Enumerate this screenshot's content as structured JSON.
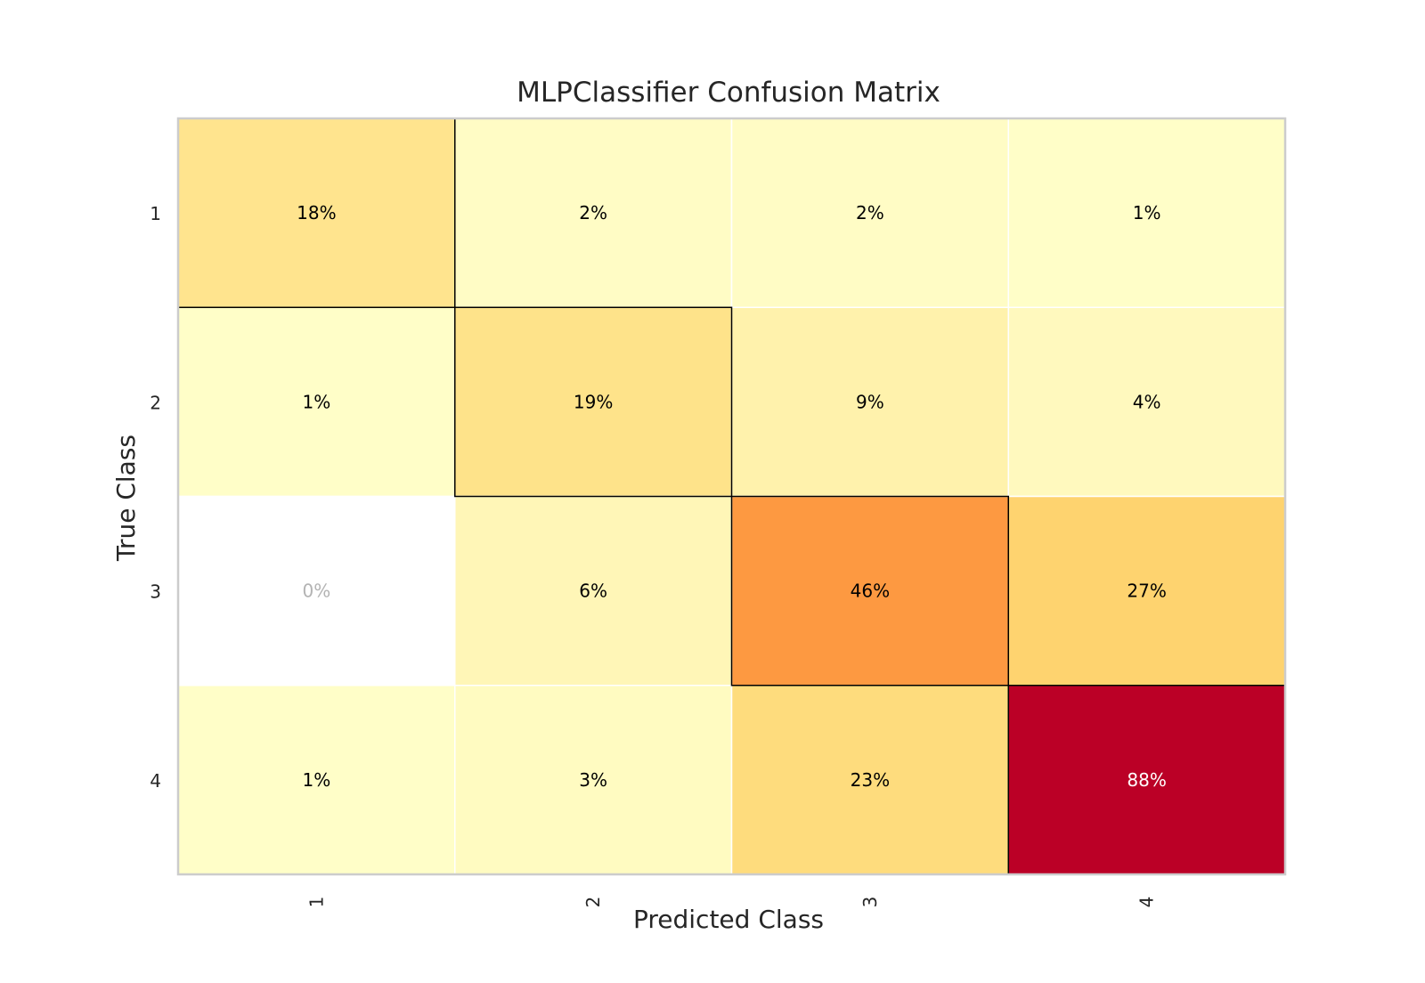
{
  "chart_data": {
    "type": "heatmap",
    "title": "MLPClassifier Confusion Matrix",
    "xlabel": "Predicted Class",
    "ylabel": "True Class",
    "x_categories": [
      "1",
      "2",
      "3",
      "4"
    ],
    "y_categories": [
      "1",
      "2",
      "3",
      "4"
    ],
    "values": [
      [
        18,
        2,
        2,
        1
      ],
      [
        1,
        19,
        9,
        4
      ],
      [
        0,
        6,
        46,
        27
      ],
      [
        1,
        3,
        23,
        88
      ]
    ],
    "value_suffix": "%",
    "value_range": [
      0,
      100
    ],
    "colormap": "YlOrRd",
    "zero_cell_color": "#ffffff",
    "zero_label_color": "#b3b3b3",
    "diagonal_outline": true,
    "x_tick_rotation": "vertical"
  }
}
